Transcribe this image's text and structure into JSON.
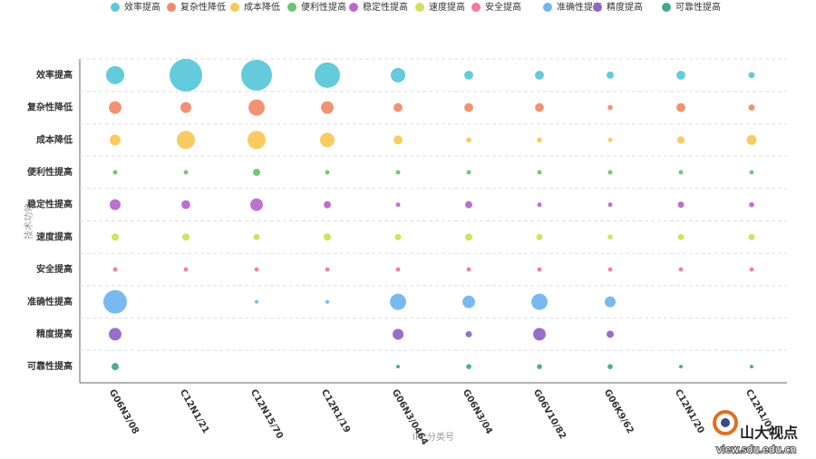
{
  "chart_data": {
    "type": "bubble",
    "x_label": "IPC分类号",
    "y_label": "技术功效",
    "categories": [
      "G06N3/08",
      "C12N1/21",
      "C12N15/70",
      "C12R1/19",
      "G06N3/0464",
      "G06N3/04",
      "G06V10/82",
      "G06K9/62",
      "C12N1/20",
      "C12R1/01"
    ],
    "series": [
      {
        "name": "效率提高",
        "color": "#5bc8d9",
        "values": [
          50,
          162,
          145,
          98,
          32,
          12,
          12,
          8,
          12,
          6
        ]
      },
      {
        "name": "复杂性降低",
        "color": "#f08c6a",
        "values": [
          24,
          18,
          40,
          24,
          12,
          12,
          12,
          4,
          12,
          6
        ]
      },
      {
        "name": "成本降低",
        "color": "#f9c859",
        "values": [
          18,
          50,
          50,
          32,
          12,
          4,
          4,
          3,
          8,
          15
        ]
      },
      {
        "name": "便利性提高",
        "color": "#6cc46f",
        "values": [
          3,
          3,
          8,
          3,
          3,
          3,
          3,
          3,
          3,
          3
        ]
      },
      {
        "name": "稳定性提高",
        "color": "#b868cf",
        "values": [
          18,
          12,
          24,
          8,
          3,
          8,
          3,
          3,
          6,
          4
        ]
      },
      {
        "name": "速度提高",
        "color": "#cfe05a",
        "values": [
          8,
          8,
          6,
          8,
          6,
          8,
          6,
          4,
          6,
          6
        ]
      },
      {
        "name": "安全提高",
        "color": "#ef7b9f",
        "values": [
          3,
          3,
          3,
          3,
          3,
          3,
          3,
          3,
          3,
          3
        ]
      },
      {
        "name": "准确性提高",
        "color": "#71b6ee",
        "values": [
          84,
          null,
          2,
          2,
          40,
          24,
          40,
          18,
          null,
          null
        ]
      },
      {
        "name": "精度提高",
        "color": "#9265c9",
        "values": [
          24,
          null,
          null,
          null,
          18,
          6,
          24,
          8,
          null,
          null
        ]
      },
      {
        "name": "可靠性提高",
        "color": "#45a893",
        "values": [
          8,
          null,
          null,
          null,
          2,
          4,
          4,
          4,
          2,
          2
        ]
      }
    ]
  },
  "watermark": {
    "brand": "山大视点",
    "url": "view.sdu.edu.cn"
  }
}
